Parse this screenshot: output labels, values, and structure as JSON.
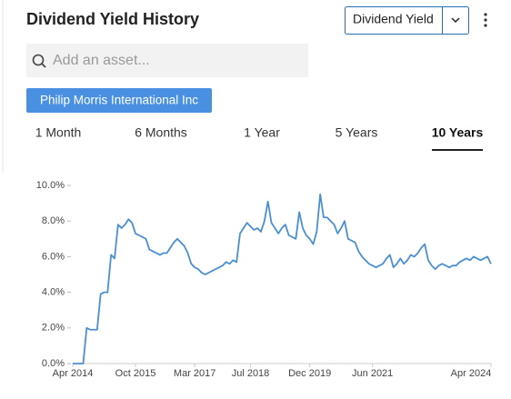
{
  "header": {
    "title": "Dividend Yield History",
    "dropdown": "Dividend Yield"
  },
  "search": {
    "placeholder": "Add an asset..."
  },
  "assets": [
    "Philip Morris International Inc"
  ],
  "tabs": {
    "items": [
      "1 Month",
      "6 Months",
      "1 Year",
      "5 Years",
      "10 Years"
    ],
    "active": 4
  },
  "chart_data": {
    "type": "line",
    "color": "#4a8fd4",
    "grid": false,
    "ylim": [
      0,
      10
    ],
    "yticks": [
      {
        "value": 0,
        "label": "0.0%"
      },
      {
        "value": 2,
        "label": "2.0%"
      },
      {
        "value": 4,
        "label": "4.0%"
      },
      {
        "value": 6,
        "label": "6.0%"
      },
      {
        "value": 8,
        "label": "8.0%"
      },
      {
        "value": 10,
        "label": "10.0%"
      }
    ],
    "xlim": [
      "2014-04",
      "2024-04"
    ],
    "xticks": [
      {
        "value": "2014-04",
        "label": "Apr 2014"
      },
      {
        "value": "2015-10",
        "label": "Oct 2015"
      },
      {
        "value": "2017-03",
        "label": "Mar 2017"
      },
      {
        "value": "2018-07",
        "label": "Jul 2018"
      },
      {
        "value": "2019-12",
        "label": "Dec 2019"
      },
      {
        "value": "2021-06",
        "label": "Jun 2021"
      },
      {
        "value": "2024-04",
        "label": "Apr 2024"
      }
    ],
    "x": [
      "2014-04",
      "2014-05",
      "2014-06",
      "2014-07",
      "2014-08",
      "2014-09",
      "2014-10",
      "2014-11",
      "2014-12",
      "2015-01",
      "2015-02",
      "2015-03",
      "2015-04",
      "2015-05",
      "2015-06",
      "2015-07",
      "2015-08",
      "2015-09",
      "2015-10",
      "2015-11",
      "2015-12",
      "2016-01",
      "2016-02",
      "2016-03",
      "2016-04",
      "2016-05",
      "2016-06",
      "2016-07",
      "2016-08",
      "2016-09",
      "2016-10",
      "2016-11",
      "2016-12",
      "2017-01",
      "2017-02",
      "2017-03",
      "2017-04",
      "2017-05",
      "2017-06",
      "2017-07",
      "2017-08",
      "2017-09",
      "2017-10",
      "2017-11",
      "2017-12",
      "2018-01",
      "2018-02",
      "2018-03",
      "2018-04",
      "2018-05",
      "2018-06",
      "2018-07",
      "2018-08",
      "2018-09",
      "2018-10",
      "2018-11",
      "2018-12",
      "2019-01",
      "2019-02",
      "2019-03",
      "2019-04",
      "2019-05",
      "2019-06",
      "2019-07",
      "2019-08",
      "2019-09",
      "2019-10",
      "2019-11",
      "2019-12",
      "2020-01",
      "2020-02",
      "2020-03",
      "2020-04",
      "2020-05",
      "2020-06",
      "2020-07",
      "2020-08",
      "2020-09",
      "2020-10",
      "2020-11",
      "2020-12",
      "2021-01",
      "2021-02",
      "2021-03",
      "2021-04",
      "2021-05",
      "2021-06",
      "2021-07",
      "2021-08",
      "2021-09",
      "2021-10",
      "2021-11",
      "2021-12",
      "2022-01",
      "2022-02",
      "2022-03",
      "2022-04",
      "2022-05",
      "2022-06",
      "2022-07",
      "2022-08",
      "2022-09",
      "2022-10",
      "2022-11",
      "2022-12",
      "2023-01",
      "2023-02",
      "2023-03",
      "2023-04",
      "2023-05",
      "2023-06",
      "2023-07",
      "2023-08",
      "2023-09",
      "2023-10",
      "2023-11",
      "2023-12",
      "2024-01",
      "2024-02",
      "2024-03",
      "2024-04"
    ],
    "values": [
      0,
      0,
      0,
      0,
      2.0,
      1.9,
      1.9,
      1.9,
      3.9,
      4.0,
      4.0,
      6.1,
      5.9,
      7.8,
      7.6,
      7.8,
      8.1,
      7.9,
      7.3,
      7.2,
      7.1,
      7.0,
      6.4,
      6.3,
      6.2,
      6.1,
      6.2,
      6.2,
      6.5,
      6.8,
      7.0,
      6.8,
      6.6,
      6.2,
      5.6,
      5.4,
      5.3,
      5.1,
      5.0,
      5.1,
      5.2,
      5.3,
      5.4,
      5.5,
      5.7,
      5.6,
      5.8,
      5.7,
      7.3,
      7.6,
      7.9,
      7.7,
      7.5,
      7.6,
      7.4,
      8.0,
      9.1,
      7.9,
      7.6,
      7.3,
      7.6,
      7.8,
      7.2,
      7.1,
      7.0,
      8.5,
      7.6,
      7.2,
      7.0,
      6.7,
      7.4,
      9.5,
      8.2,
      8.2,
      8.0,
      7.8,
      7.3,
      7.6,
      8.0,
      7.0,
      6.9,
      6.8,
      6.3,
      6.0,
      5.8,
      5.6,
      5.5,
      5.4,
      5.5,
      5.6,
      5.9,
      6.1,
      5.4,
      5.6,
      5.9,
      5.6,
      5.8,
      6.1,
      6.0,
      6.2,
      6.5,
      6.7,
      5.8,
      5.5,
      5.3,
      5.5,
      5.6,
      5.5,
      5.4,
      5.5,
      5.5,
      5.7,
      5.8,
      5.9,
      5.8,
      6.0,
      5.9,
      5.8,
      5.9,
      6.0,
      5.6
    ]
  }
}
